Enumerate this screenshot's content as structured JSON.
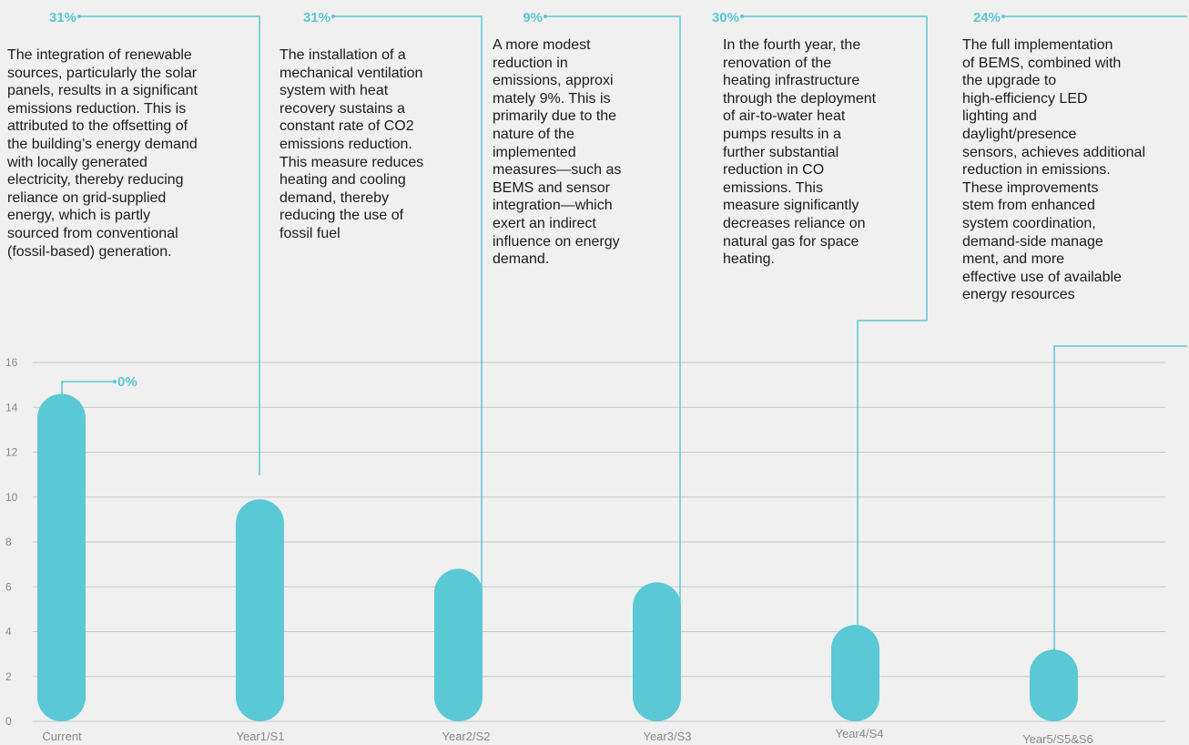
{
  "chart_data": {
    "type": "bar",
    "categories": [
      "Current",
      "Year1/S1",
      "Year2/S2",
      "Year3/S3",
      "Year4/S4",
      "Year5/S5&S6"
    ],
    "values": [
      14.6,
      9.9,
      6.8,
      6.2,
      4.3,
      3.2
    ],
    "ylim": [
      0,
      16
    ],
    "yticks": [
      0,
      2,
      4,
      6,
      8,
      10,
      12,
      14,
      16
    ],
    "grid": true,
    "reduction_labels": [
      "0%",
      "31%",
      "31%",
      "9%",
      "30%",
      "24%"
    ],
    "annotations": [
      "The integration of renewable\nsources, particularly the solar\npanels, results in a significant\nemissions reduction. This is\nattributed to the offsetting of\nthe building’s energy demand\nwith locally generated\nelectricity, thereby reducing\nreliance on grid-supplied\nenergy, which is partly\nsourced from conventional\n(fossil-based) generation.",
      "The installation of a\nmechanical ventilation\nsystem with heat\nrecovery sustains a\nconstant rate of CO2\nemissions reduction.\nThis measure reduces\nheating and cooling\ndemand, thereby\nreducing the use of\nfossil fuel",
      "A more modest\nreduction in\nemissions, approxi\nmately 9%. This is\nprimarily due to the\nnature of the\nimplemented\nmeasures—such as\nBEMS and sensor\nintegration—which\nexert an indirect\ninfluence on energy\ndemand.",
      "In the fourth year, the\nrenovation of the\nheating infrastructure\nthrough the deployment\nof air-to-water heat\npumps results in a\nfurther substantial\nreduction in CO\nemissions. This\nmeasure significantly\ndecreases reliance on\nnatural gas for space\nheating.",
      "The full implementation\nof BEMS, combined with\nthe upgrade to\nhigh-efficiency LED\nlighting and\ndaylight/presence\nsensors, achieves additional\nreduction in emissions.\nThese improvements\nstem from enhanced\nsystem coordination,\ndemand-side manage\nment, and more\neffective use of available\nenergy resources"
    ],
    "colors": {
      "bar": "#5bc8d6",
      "line": "#5bc8d6",
      "grid": "#c9c9c9",
      "axis_text": "#8a8a8a"
    }
  }
}
